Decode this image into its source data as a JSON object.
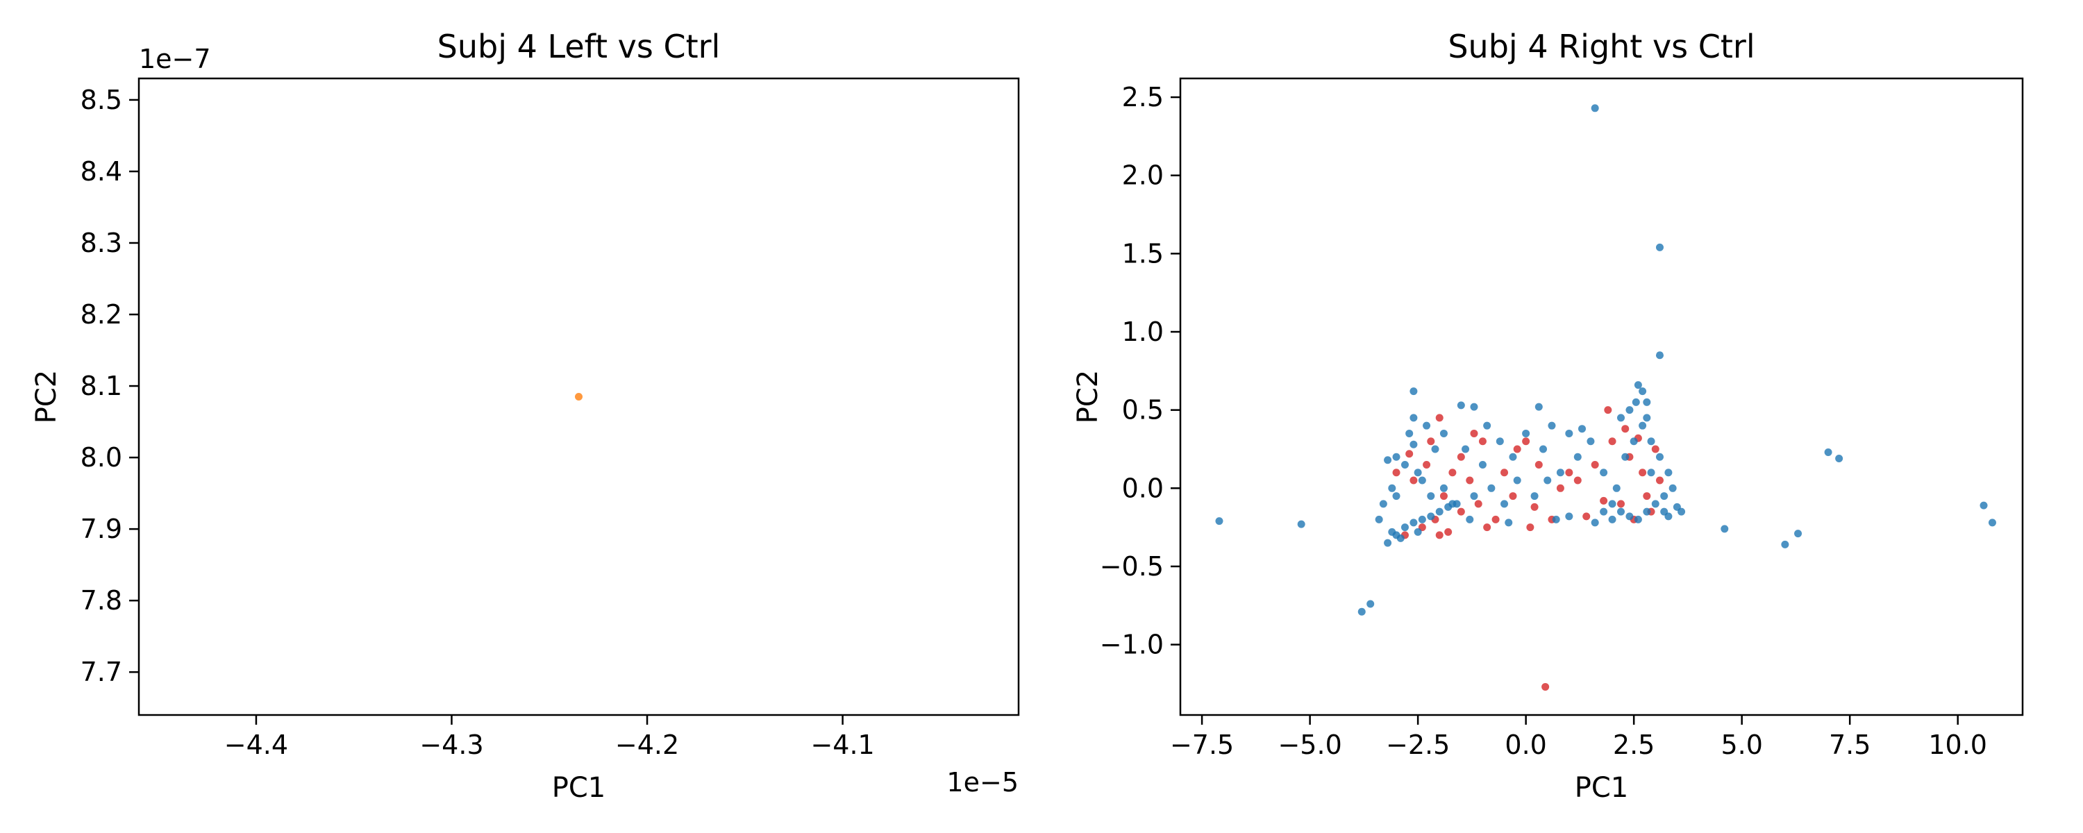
{
  "chart_data": [
    {
      "type": "scatter",
      "title": "Subj 4  Left vs Ctrl",
      "xlabel": "PC1",
      "ylabel": "PC2",
      "x_offset_label": "1e−5",
      "y_offset_label": "1e−7",
      "xlim": [
        -4.46,
        -4.01
      ],
      "ylim": [
        7.64,
        8.53
      ],
      "x_ticks": [
        -4.4,
        -4.3,
        -4.2,
        -4.1
      ],
      "x_tick_labels": [
        "−4.4",
        "−4.3",
        "−4.2",
        "−4.1"
      ],
      "y_ticks": [
        7.7,
        7.8,
        7.9,
        8.0,
        8.1,
        8.2,
        8.3,
        8.4,
        8.5
      ],
      "y_tick_labels": [
        "7.7",
        "7.8",
        "7.9",
        "8.0",
        "8.1",
        "8.2",
        "8.3",
        "8.4",
        "8.5"
      ],
      "grid": false,
      "series": [
        {
          "color": "#ff7f0e",
          "points": [
            [
              -4.235,
              8.085
            ]
          ]
        }
      ]
    },
    {
      "type": "scatter",
      "title": "Subj 4  Right vs Ctrl",
      "xlabel": "PC1",
      "ylabel": "PC2",
      "xlim": [
        -8.0,
        11.5
      ],
      "ylim": [
        -1.45,
        2.62
      ],
      "x_ticks": [
        -7.5,
        -5.0,
        -2.5,
        0.0,
        2.5,
        5.0,
        7.5,
        10.0
      ],
      "x_tick_labels": [
        "−7.5",
        "−5.0",
        "−2.5",
        "0.0",
        "2.5",
        "5.0",
        "7.5",
        "10.0"
      ],
      "y_ticks": [
        -1.0,
        -0.5,
        0.0,
        0.5,
        1.0,
        1.5,
        2.0,
        2.5
      ],
      "y_tick_labels": [
        "−1.0",
        "−0.5",
        "0.0",
        "0.5",
        "1.0",
        "1.5",
        "2.0",
        "2.5"
      ],
      "grid": false,
      "series": [
        {
          "color": "#d62728",
          "points": [
            [
              0.45,
              -1.27
            ],
            [
              -2.0,
              0.45
            ],
            [
              -1.5,
              0.2
            ],
            [
              -1.2,
              0.35
            ],
            [
              -0.5,
              0.1
            ],
            [
              0.0,
              0.3
            ],
            [
              0.3,
              0.15
            ],
            [
              1.9,
              0.5
            ],
            [
              -2.8,
              -0.3
            ],
            [
              -2.4,
              -0.25
            ],
            [
              -2.1,
              -0.2
            ],
            [
              -1.8,
              -0.28
            ],
            [
              -1.5,
              -0.15
            ],
            [
              -1.1,
              -0.1
            ],
            [
              -0.7,
              -0.2
            ],
            [
              -0.3,
              -0.05
            ],
            [
              0.2,
              -0.12
            ],
            [
              0.6,
              -0.2
            ],
            [
              1.2,
              0.05
            ],
            [
              1.6,
              0.15
            ],
            [
              2.0,
              0.3
            ],
            [
              2.2,
              -0.1
            ],
            [
              2.4,
              0.2
            ],
            [
              2.7,
              0.1
            ],
            [
              2.9,
              -0.15
            ],
            [
              3.1,
              0.05
            ],
            [
              -3.0,
              0.1
            ],
            [
              -2.6,
              0.05
            ],
            [
              -2.3,
              0.15
            ],
            [
              -1.9,
              -0.05
            ],
            [
              -1.3,
              0.05
            ],
            [
              -0.9,
              -0.25
            ],
            [
              0.8,
              0.0
            ],
            [
              1.4,
              -0.18
            ],
            [
              2.5,
              -0.2
            ],
            [
              -2.2,
              0.3
            ],
            [
              -1.7,
              0.1
            ],
            [
              -0.2,
              0.25
            ],
            [
              0.1,
              -0.25
            ],
            [
              1.8,
              -0.08
            ],
            [
              2.6,
              0.32
            ],
            [
              3.0,
              0.25
            ],
            [
              -2.7,
              0.22
            ],
            [
              -2.0,
              -0.3
            ],
            [
              -1.0,
              0.3
            ],
            [
              1.0,
              0.1
            ],
            [
              2.3,
              0.38
            ],
            [
              2.8,
              -0.05
            ]
          ]
        },
        {
          "color": "#1f77b4",
          "points": [
            [
              1.6,
              2.43
            ],
            [
              3.1,
              1.54
            ],
            [
              3.1,
              0.85
            ],
            [
              -7.1,
              -0.21
            ],
            [
              -5.2,
              -0.23
            ],
            [
              -3.8,
              -0.79
            ],
            [
              -3.6,
              -0.74
            ],
            [
              4.6,
              -0.26
            ],
            [
              6.0,
              -0.36
            ],
            [
              6.3,
              -0.29
            ],
            [
              7.0,
              0.23
            ],
            [
              7.25,
              0.19
            ],
            [
              10.6,
              -0.11
            ],
            [
              10.8,
              -0.22
            ],
            [
              -2.6,
              0.62
            ],
            [
              -1.5,
              0.53
            ],
            [
              -1.2,
              0.52
            ],
            [
              0.3,
              0.52
            ],
            [
              2.6,
              0.66
            ],
            [
              2.7,
              0.62
            ],
            [
              2.55,
              0.55
            ],
            [
              2.8,
              0.45
            ],
            [
              -3.2,
              -0.35
            ],
            [
              -3.0,
              -0.3
            ],
            [
              -2.8,
              -0.25
            ],
            [
              -2.6,
              -0.22
            ],
            [
              -2.4,
              -0.2
            ],
            [
              -2.2,
              -0.18
            ],
            [
              -2.0,
              -0.15
            ],
            [
              -1.8,
              -0.12
            ],
            [
              -1.6,
              -0.1
            ],
            [
              -3.4,
              -0.2
            ],
            [
              -3.1,
              -0.28
            ],
            [
              -2.9,
              -0.32
            ],
            [
              -2.5,
              -0.28
            ],
            [
              -3.0,
              0.2
            ],
            [
              -3.2,
              0.18
            ],
            [
              -2.8,
              0.15
            ],
            [
              -2.5,
              0.1
            ],
            [
              -2.7,
              0.35
            ],
            [
              -2.6,
              0.45
            ],
            [
              -2.4,
              0.05
            ],
            [
              -2.2,
              -0.05
            ],
            [
              -1.9,
              0.0
            ],
            [
              -1.7,
              -0.1
            ],
            [
              -1.2,
              -0.05
            ],
            [
              -0.8,
              0.0
            ],
            [
              -0.5,
              -0.1
            ],
            [
              -0.2,
              0.05
            ],
            [
              0.2,
              -0.05
            ],
            [
              0.5,
              0.05
            ],
            [
              0.8,
              0.1
            ],
            [
              1.2,
              0.2
            ],
            [
              1.5,
              0.3
            ],
            [
              1.8,
              0.1
            ],
            [
              2.0,
              -0.1
            ],
            [
              2.2,
              -0.15
            ],
            [
              2.4,
              -0.18
            ],
            [
              2.6,
              -0.2
            ],
            [
              2.8,
              -0.15
            ],
            [
              3.0,
              -0.1
            ],
            [
              3.2,
              -0.05
            ],
            [
              3.4,
              0.0
            ],
            [
              3.5,
              -0.12
            ],
            [
              3.3,
              0.1
            ],
            [
              3.1,
              0.2
            ],
            [
              2.9,
              0.3
            ],
            [
              2.7,
              0.4
            ],
            [
              2.5,
              0.3
            ],
            [
              2.3,
              0.2
            ],
            [
              2.1,
              0.0
            ],
            [
              3.6,
              -0.15
            ],
            [
              3.3,
              -0.18
            ],
            [
              2.0,
              -0.2
            ],
            [
              1.8,
              -0.15
            ],
            [
              -0.9,
              0.4
            ],
            [
              -0.6,
              0.3
            ],
            [
              0.0,
              0.35
            ],
            [
              0.6,
              0.4
            ],
            [
              1.0,
              0.35
            ],
            [
              1.3,
              0.38
            ],
            [
              -1.4,
              0.25
            ],
            [
              -1.0,
              0.15
            ],
            [
              -0.3,
              0.2
            ],
            [
              0.4,
              0.25
            ],
            [
              -2.3,
              0.4
            ],
            [
              -2.1,
              0.25
            ],
            [
              -1.9,
              0.35
            ],
            [
              -3.3,
              -0.1
            ],
            [
              -3.1,
              0.0
            ],
            [
              2.4,
              0.5
            ],
            [
              2.8,
              0.55
            ],
            [
              2.9,
              0.1
            ],
            [
              3.2,
              -0.15
            ],
            [
              1.0,
              -0.18
            ],
            [
              -1.3,
              -0.2
            ],
            [
              -0.4,
              -0.22
            ],
            [
              0.7,
              -0.2
            ],
            [
              1.6,
              -0.22
            ],
            [
              2.2,
              0.45
            ],
            [
              -2.6,
              0.28
            ],
            [
              -3.0,
              -0.05
            ]
          ]
        }
      ]
    }
  ]
}
